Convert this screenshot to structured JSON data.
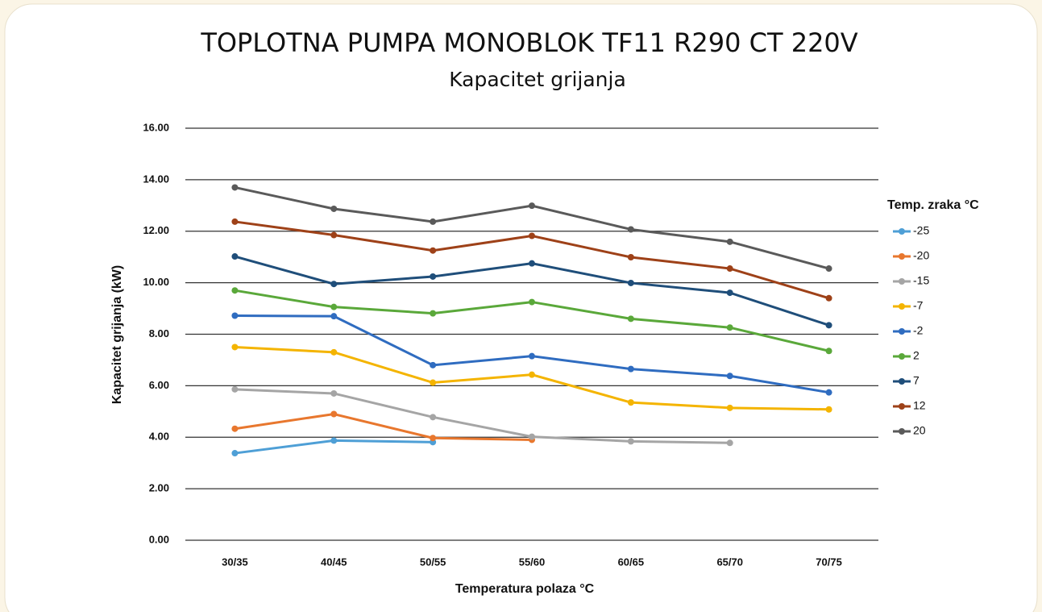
{
  "chart_data": {
    "type": "line",
    "title": "TOPLOTNA PUMPA MONOBLOK TF11 R290 CT 220V",
    "subtitle": "Kapacitet grijanja",
    "x_label": "Temperatura polaza °C",
    "y_label": "Kapacitet grijanja (kW)",
    "legend_title": "Temp. zraka °C",
    "legend_position": "right",
    "grid": true,
    "categories": [
      "30/35",
      "40/45",
      "50/55",
      "55/60",
      "60/65",
      "65/70",
      "70/75"
    ],
    "ylim": [
      0,
      16
    ],
    "yticks": [
      {
        "value": 0,
        "label": "0.00"
      },
      {
        "value": 2,
        "label": "2.00"
      },
      {
        "value": 4,
        "label": "4.00"
      },
      {
        "value": 6,
        "label": "6.00"
      },
      {
        "value": 8,
        "label": "8.00"
      },
      {
        "value": 10,
        "label": "10.00"
      },
      {
        "value": 12,
        "label": "12.00"
      },
      {
        "value": 14,
        "label": "14.00"
      },
      {
        "value": 16,
        "label": "16.00"
      }
    ],
    "series": [
      {
        "name": "-25",
        "color": "#4e9fd6",
        "values": [
          3.38,
          3.87,
          3.81,
          null,
          null,
          null,
          null
        ]
      },
      {
        "name": "-20",
        "color": "#e8772e",
        "values": [
          4.33,
          4.9,
          3.97,
          3.9,
          null,
          null,
          null
        ]
      },
      {
        "name": "-15",
        "color": "#a5a5a5",
        "values": [
          5.86,
          5.7,
          4.78,
          4.02,
          3.84,
          3.78,
          null
        ]
      },
      {
        "name": "-7",
        "color": "#f4b400",
        "values": [
          7.5,
          7.3,
          6.12,
          6.43,
          5.35,
          5.14,
          5.08
        ]
      },
      {
        "name": "-2",
        "color": "#2f6cc0",
        "values": [
          8.72,
          8.7,
          6.8,
          7.15,
          6.65,
          6.38,
          5.74
        ]
      },
      {
        "name": "2",
        "color": "#5aa83a",
        "values": [
          9.7,
          9.06,
          8.81,
          9.25,
          8.6,
          8.26,
          7.35
        ]
      },
      {
        "name": "7",
        "color": "#1f4e7a",
        "values": [
          11.02,
          9.95,
          10.24,
          10.75,
          9.99,
          9.61,
          8.35
        ]
      },
      {
        "name": "12",
        "color": "#9e4118",
        "values": [
          12.37,
          11.85,
          11.25,
          11.82,
          10.99,
          10.55,
          9.4
        ]
      },
      {
        "name": "20",
        "color": "#5a5a5a",
        "values": [
          13.7,
          12.87,
          12.37,
          12.99,
          12.07,
          11.59,
          10.55
        ]
      }
    ]
  }
}
